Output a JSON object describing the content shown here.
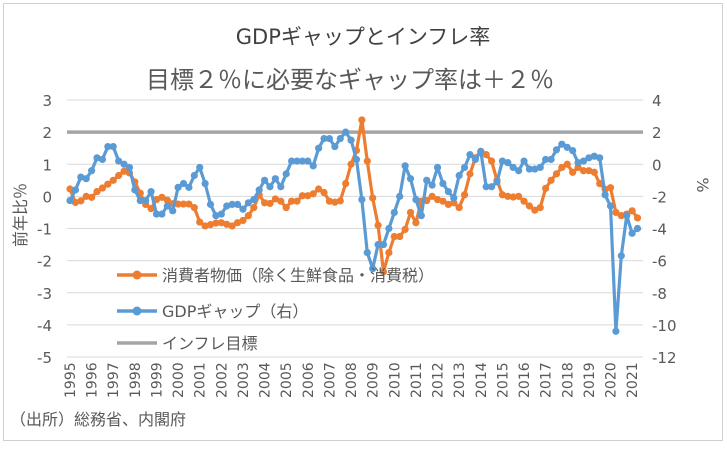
{
  "chart_data": {
    "type": "line",
    "title": "GDPギャップとインフレ率",
    "subtitle": "目標２％に必要なギャップ率は＋２％",
    "ylabel": "前年比％",
    "y2label": "%",
    "ylim": [
      -5,
      3
    ],
    "y2lim": [
      -12,
      4
    ],
    "yticks": [
      "3",
      "2",
      "1",
      "0",
      "-1",
      "-2",
      "-3",
      "-4",
      "-5"
    ],
    "y2ticks": [
      "4",
      "2",
      "0",
      "-2",
      "-4",
      "-6",
      "-8",
      "-10",
      "-12"
    ],
    "xticks": [
      "1995",
      "1996",
      "1997",
      "1998",
      "1999",
      "2000",
      "2001",
      "2002",
      "2003",
      "2004",
      "2005",
      "2006",
      "2007",
      "2008",
      "2009",
      "2010",
      "2011",
      "2012",
      "2013",
      "2014",
      "2015",
      "2016",
      "2017",
      "2018",
      "2019",
      "2020",
      "2021"
    ],
    "x_start": "1995Q1",
    "x_frequency": "quarterly",
    "grid": true,
    "legend_placement": "bottom-left inside",
    "source": "（出所）総務省、内閣府",
    "series": [
      {
        "name": "消費者物価（除く生鮮食品・消費税）",
        "axis": "left",
        "color": "#ED7D31",
        "values": [
          0.23,
          -0.19,
          -0.14,
          0.0,
          -0.03,
          0.15,
          0.26,
          0.38,
          0.5,
          0.65,
          0.78,
          0.73,
          0.45,
          0.1,
          -0.25,
          -0.38,
          -0.1,
          -0.03,
          -0.12,
          -0.23,
          -0.24,
          -0.24,
          -0.24,
          -0.35,
          -0.8,
          -0.92,
          -0.88,
          -0.83,
          -0.82,
          -0.87,
          -0.92,
          -0.82,
          -0.75,
          -0.6,
          -0.35,
          0.05,
          -0.2,
          -0.22,
          -0.08,
          -0.15,
          -0.35,
          -0.15,
          -0.15,
          0.02,
          0.02,
          0.08,
          0.23,
          0.12,
          -0.15,
          -0.18,
          -0.14,
          0.4,
          1.0,
          1.43,
          2.38,
          1.1,
          -0.05,
          -0.9,
          -2.35,
          -1.75,
          -1.25,
          -1.25,
          -1.03,
          -0.5,
          -0.82,
          -0.15,
          -0.13,
          0.0,
          -0.1,
          -0.15,
          -0.25,
          -0.2,
          -0.35,
          0.05,
          0.7,
          1.2,
          1.4,
          1.3,
          1.1,
          0.5,
          0.05,
          0.0,
          -0.02,
          0.0,
          -0.15,
          -0.3,
          -0.43,
          -0.35,
          0.25,
          0.5,
          0.7,
          0.9,
          1.0,
          0.75,
          0.9,
          0.8,
          0.8,
          0.75,
          0.4,
          0.22,
          0.27,
          -0.5,
          -0.6,
          -0.55,
          -0.45,
          -0.67
        ]
      },
      {
        "name": "GDPギャップ（右）",
        "axis": "right",
        "color": "#5B9BD5",
        "values": [
          -2.26,
          -1.6,
          -0.8,
          -0.9,
          -0.4,
          0.4,
          0.3,
          1.1,
          1.1,
          0.2,
          0.0,
          -0.2,
          -1.6,
          -2.26,
          -2.26,
          -1.7,
          -3.1,
          -3.1,
          -2.6,
          -2.9,
          -1.44,
          -1.2,
          -1.44,
          -0.7,
          -0.2,
          -1.2,
          -2.5,
          -3.2,
          -3.1,
          -2.6,
          -2.5,
          -2.5,
          -2.8,
          -2.4,
          -2.2,
          -1.6,
          -1.0,
          -1.4,
          -0.9,
          -1.4,
          -0.6,
          0.2,
          0.2,
          0.2,
          0.2,
          -0.1,
          1.0,
          1.6,
          1.6,
          1.1,
          1.6,
          2.0,
          1.5,
          0.3,
          -2.2,
          -5.5,
          -6.5,
          -5.0,
          -5.0,
          -4.0,
          -3.0,
          -2.0,
          -0.1,
          -0.9,
          -2.2,
          -3.2,
          -1.0,
          -1.3,
          -0.2,
          -1.2,
          -1.7,
          -2.1,
          -0.7,
          -0.2,
          0.6,
          0.3,
          0.8,
          -1.4,
          -1.4,
          -1.1,
          0.2,
          0.1,
          -0.2,
          -0.4,
          0.2,
          -0.3,
          -0.3,
          -0.2,
          0.3,
          0.3,
          0.9,
          1.25,
          1.05,
          0.85,
          0.1,
          0.2,
          0.4,
          0.5,
          0.4,
          -1.9,
          -2.6,
          -10.4,
          -5.7,
          -3.2,
          -4.3,
          -4.0
        ]
      },
      {
        "name": "インフレ目標",
        "axis": "left",
        "color": "#A5A5A5",
        "constant": 2
      }
    ]
  }
}
